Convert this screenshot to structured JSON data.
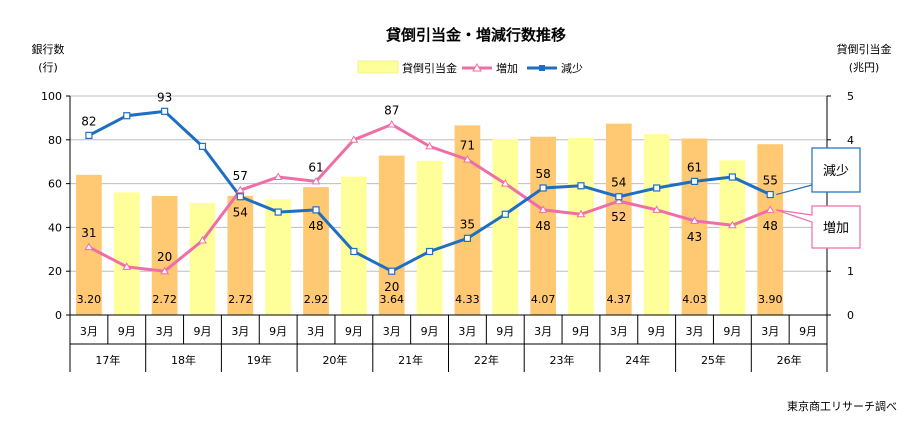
{
  "chart_data": {
    "type": "bar",
    "title": "貸倒引当金・増減行数推移",
    "left_axis": {
      "label_line1": "銀行数",
      "label_line2": "(行)",
      "ticks": [
        "0",
        "20",
        "40",
        "60",
        "80",
        "100"
      ],
      "range": [
        0,
        100
      ]
    },
    "right_axis": {
      "label_line1": "貸倒引当金",
      "label_line2": "(兆円)",
      "ticks": [
        "0",
        "1",
        "2",
        "3",
        "4",
        "5"
      ],
      "range": [
        0,
        5
      ]
    },
    "legend": {
      "bar": "貸倒引当金",
      "increase": "増加",
      "decrease": "減少"
    },
    "x_labels": [
      "3月",
      "9月",
      "3月",
      "9月",
      "3月",
      "9月",
      "3月",
      "9月",
      "3月",
      "9月",
      "3月",
      "9月",
      "3月",
      "9月",
      "3月",
      "9月",
      "3月",
      "9月",
      "3月",
      "9月"
    ],
    "year_labels": [
      "17年",
      "18年",
      "19年",
      "20年",
      "21年",
      "22年",
      "23年",
      "24年",
      "25年",
      "26年"
    ],
    "bar_values": [
      3.2,
      2.8,
      2.72,
      2.56,
      2.72,
      2.64,
      2.92,
      3.16,
      3.64,
      3.52,
      4.33,
      4.02,
      4.07,
      4.04,
      4.37,
      4.13,
      4.03,
      3.53,
      3.9,
      null
    ],
    "bar_labels": [
      "3.20",
      "",
      "2.72",
      "",
      "2.72",
      "",
      "2.92",
      "",
      "3.64",
      "",
      "4.33",
      "",
      "4.07",
      "",
      "4.37",
      "",
      "4.03",
      "",
      "3.90",
      ""
    ],
    "increase_values": [
      31,
      22,
      20,
      34,
      57,
      63,
      61,
      80,
      87,
      77,
      71,
      60,
      48,
      46,
      52,
      48,
      43,
      41,
      48,
      null
    ],
    "increase_labels": [
      "31",
      "",
      "20",
      "",
      "57",
      "",
      "61",
      "",
      "87",
      "",
      "71",
      "",
      "48",
      "",
      "52",
      "",
      "43",
      "",
      "48",
      ""
    ],
    "decrease_values": [
      82,
      91,
      93,
      77,
      54,
      47,
      48,
      29,
      20,
      29,
      35,
      46,
      58,
      59,
      54,
      58,
      61,
      63,
      55,
      null
    ],
    "decrease_labels": [
      "82",
      "",
      "93",
      "",
      "54",
      "",
      "48",
      "",
      "20",
      "",
      "35",
      "",
      "58",
      "",
      "54",
      "",
      "61",
      "",
      "55",
      ""
    ],
    "callout_decrease": "減少",
    "callout_increase": "増加",
    "colors": {
      "bar_march": "#ffc973",
      "bar_sept": "#ffff99",
      "bar_legend": "#ffff99",
      "increase": "#f06ea8",
      "decrease": "#1e6fc2",
      "grid": "#bdbdbd"
    }
  },
  "source_note": "東京商工リサーチ調べ"
}
